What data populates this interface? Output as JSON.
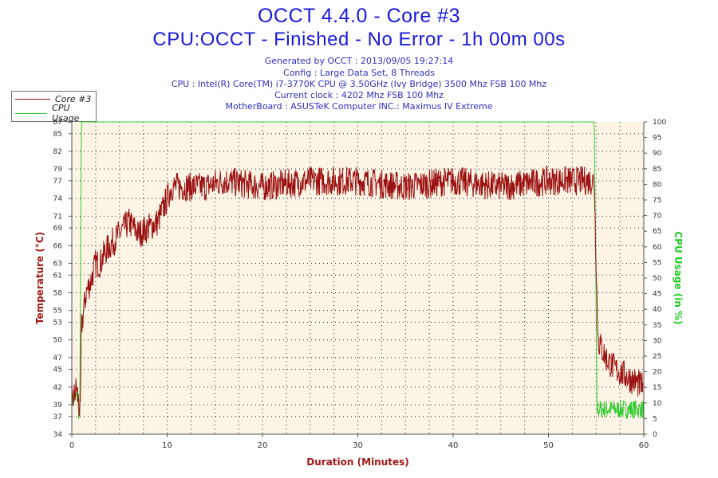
{
  "header": {
    "title": "OCCT 4.4.0 - Core #3",
    "subtitle": "CPU:OCCT - Finished - No Error - 1h 00m 00s",
    "info_lines": [
      "Generated by OCCT : 2013/09/05 19:27:14",
      "Config : Large Data Set, 8 Threads",
      "CPU : Intel(R) Core(TM) i7-3770K CPU @ 3.50GHz (Ivy Bridge) 3500 Mhz FSB 100 Mhz",
      "Current clock : 4202 Mhz FSB 100 Mhz",
      "MotherBoard : ASUSTeK Computer INC.: Maximus IV Extreme"
    ]
  },
  "legend": {
    "items": [
      {
        "label": "Core #3",
        "color": "#9b1010"
      },
      {
        "label": "CPU Usage",
        "color": "#33cc33"
      }
    ]
  },
  "chart_data": {
    "type": "line",
    "title": "OCCT 4.4.0 - Core #3",
    "xlabel": "Duration (Minutes)",
    "ylabel_left": "Temperature (°C)",
    "ylabel_right": "CPU Usage (in %)",
    "xlim": [
      0,
      60
    ],
    "ylim_left": [
      34,
      87
    ],
    "ylim_right": [
      0,
      100
    ],
    "x_ticks": [
      0,
      10,
      20,
      30,
      40,
      50,
      60
    ],
    "y_left_ticks": [
      34,
      37,
      39,
      42,
      45,
      47,
      50,
      53,
      55,
      58,
      61,
      63,
      66,
      69,
      71,
      74,
      77,
      79,
      82,
      85,
      87
    ],
    "y_right_ticks": [
      0,
      5,
      10,
      15,
      20,
      25,
      30,
      35,
      40,
      45,
      50,
      55,
      60,
      65,
      70,
      75,
      80,
      85,
      90,
      95,
      100
    ],
    "grid": true,
    "colors": {
      "temperature": "#9b1010",
      "cpu_usage": "#33cc33",
      "plot_bg": "#fcf4e4",
      "left_axis_label": "#a01818",
      "right_axis_label": "#22cc22",
      "x_axis_label": "#a01818"
    },
    "series": [
      {
        "name": "Core #3",
        "axis": "left",
        "noise": 2.5,
        "x": [
          0,
          0.5,
          0.9,
          1.0,
          1.5,
          2,
          2.5,
          3,
          3.5,
          4,
          5,
          6,
          7,
          8,
          9,
          10,
          10.5,
          11,
          12,
          14,
          16,
          20,
          25,
          30,
          35,
          40,
          45,
          50,
          54.5,
          54.8,
          55.2,
          56,
          57,
          58,
          59,
          59.9
        ],
        "values": [
          39,
          42,
          37,
          52,
          58,
          60,
          63,
          63,
          65,
          66,
          68,
          70,
          68,
          69,
          70,
          74,
          76,
          76,
          76,
          76,
          77,
          76,
          77,
          77,
          76,
          77,
          76,
          77,
          77,
          77,
          50,
          47,
          45,
          44,
          43,
          42
        ]
      },
      {
        "name": "CPU Usage",
        "axis": "right",
        "noise": 3,
        "x": [
          0,
          0.6,
          0.8,
          0.85,
          1.0,
          54.8,
          54.9,
          55.1,
          60
        ],
        "values": [
          11,
          12,
          5,
          10,
          100,
          100,
          70,
          8,
          8
        ]
      }
    ]
  }
}
